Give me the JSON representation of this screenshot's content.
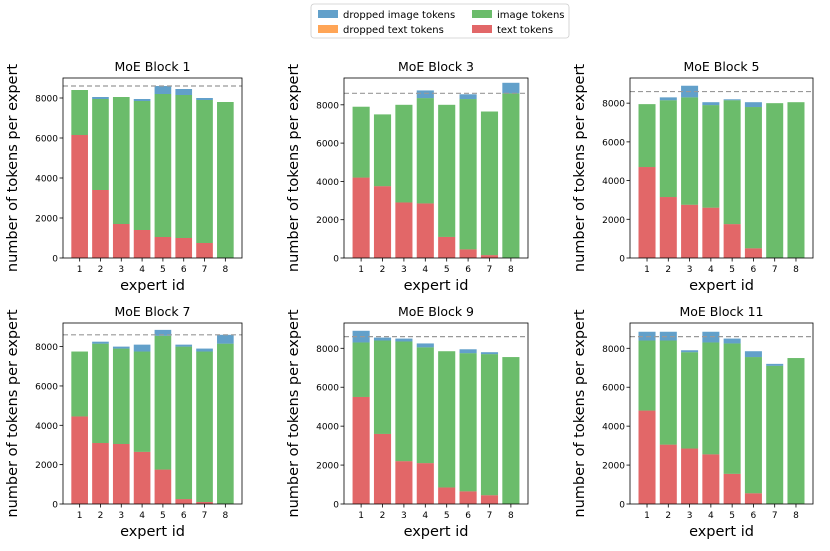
{
  "legend": {
    "entries": [
      {
        "label": "dropped image tokens",
        "color": "#1f77b4"
      },
      {
        "label": "dropped text tokens",
        "color": "#ff7f0e"
      },
      {
        "label": "image tokens",
        "color": "#2ca02c"
      },
      {
        "label": "text tokens",
        "color": "#d62728"
      }
    ]
  },
  "chart_data": [
    {
      "type": "bar",
      "title": "MoE Block 1",
      "xlabel": "expert id",
      "ylabel": "number of tokens per expert",
      "categories": [
        "1",
        "2",
        "3",
        "4",
        "5",
        "6",
        "7",
        "8"
      ],
      "ylim": [
        0,
        9000
      ],
      "yticks": [
        0,
        2000,
        4000,
        6000,
        8000
      ],
      "capacity": 8600,
      "series": [
        {
          "name": "text tokens",
          "values": [
            6150,
            3400,
            1700,
            1400,
            1050,
            1000,
            750,
            0
          ]
        },
        {
          "name": "image tokens",
          "values": [
            2250,
            4550,
            6350,
            6450,
            7150,
            7150,
            7150,
            7800
          ]
        },
        {
          "name": "dropped image tokens",
          "values": [
            0,
            100,
            0,
            100,
            400,
            300,
            100,
            0
          ]
        }
      ]
    },
    {
      "type": "bar",
      "title": "MoE Block 3",
      "xlabel": "expert id",
      "ylabel": "number of tokens per expert",
      "categories": [
        "1",
        "2",
        "3",
        "4",
        "5",
        "6",
        "7",
        "8"
      ],
      "ylim": [
        0,
        9400
      ],
      "yticks": [
        0,
        2000,
        4000,
        6000,
        8000
      ],
      "capacity": 8600,
      "series": [
        {
          "name": "text tokens",
          "values": [
            4200,
            3750,
            2900,
            2850,
            1100,
            450,
            150,
            0
          ]
        },
        {
          "name": "image tokens",
          "values": [
            3700,
            3750,
            5100,
            5500,
            6900,
            7850,
            7500,
            8600
          ]
        },
        {
          "name": "dropped image tokens",
          "values": [
            0,
            0,
            0,
            400,
            0,
            250,
            0,
            550
          ]
        }
      ]
    },
    {
      "type": "bar",
      "title": "MoE Block 5",
      "xlabel": "expert id",
      "ylabel": "number of tokens per expert",
      "categories": [
        "1",
        "2",
        "3",
        "4",
        "5",
        "6",
        "7",
        "8"
      ],
      "ylim": [
        0,
        9300
      ],
      "yticks": [
        0,
        2000,
        4000,
        6000,
        8000
      ],
      "capacity": 8600,
      "series": [
        {
          "name": "text tokens",
          "values": [
            4700,
            3150,
            2750,
            2600,
            1750,
            500,
            0,
            0
          ]
        },
        {
          "name": "image tokens",
          "values": [
            3250,
            5000,
            5550,
            5300,
            6400,
            7300,
            8000,
            8050
          ]
        },
        {
          "name": "dropped image tokens",
          "values": [
            0,
            150,
            600,
            150,
            50,
            250,
            0,
            0
          ]
        }
      ]
    },
    {
      "type": "bar",
      "title": "MoE Block 7",
      "xlabel": "expert id",
      "ylabel": "number of tokens per expert",
      "categories": [
        "1",
        "2",
        "3",
        "4",
        "5",
        "6",
        "7",
        "8"
      ],
      "ylim": [
        0,
        9200
      ],
      "yticks": [
        0,
        2000,
        4000,
        6000,
        8000
      ],
      "capacity": 8600,
      "series": [
        {
          "name": "text tokens",
          "values": [
            4450,
            3100,
            3050,
            2650,
            1750,
            250,
            100,
            0
          ]
        },
        {
          "name": "image tokens",
          "values": [
            3300,
            5050,
            4850,
            5100,
            6800,
            7750,
            7650,
            8150
          ]
        },
        {
          "name": "dropped image tokens",
          "values": [
            0,
            100,
            100,
            350,
            300,
            100,
            150,
            450
          ]
        }
      ]
    },
    {
      "type": "bar",
      "title": "MoE Block 9",
      "xlabel": "expert id",
      "ylabel": "number of tokens per expert",
      "categories": [
        "1",
        "2",
        "3",
        "4",
        "5",
        "6",
        "7",
        "8"
      ],
      "ylim": [
        0,
        9300
      ],
      "yticks": [
        0,
        2000,
        4000,
        6000,
        8000
      ],
      "capacity": 8600,
      "series": [
        {
          "name": "text tokens",
          "values": [
            5500,
            3600,
            2200,
            2100,
            850,
            650,
            450,
            0
          ]
        },
        {
          "name": "image tokens",
          "values": [
            2800,
            4800,
            6150,
            5950,
            7000,
            7100,
            7250,
            7550
          ]
        },
        {
          "name": "dropped image tokens",
          "values": [
            600,
            150,
            150,
            200,
            0,
            200,
            100,
            0
          ]
        }
      ]
    },
    {
      "type": "bar",
      "title": "MoE Block 11",
      "xlabel": "expert id",
      "ylabel": "number of tokens per expert",
      "categories": [
        "1",
        "2",
        "3",
        "4",
        "5",
        "6",
        "7",
        "8"
      ],
      "ylim": [
        0,
        9300
      ],
      "yticks": [
        0,
        2000,
        4000,
        6000,
        8000
      ],
      "capacity": 8600,
      "series": [
        {
          "name": "text tokens",
          "values": [
            4800,
            3050,
            2850,
            2550,
            1550,
            550,
            0,
            0
          ]
        },
        {
          "name": "image tokens",
          "values": [
            3600,
            5350,
            4950,
            5750,
            6700,
            7000,
            7100,
            7500
          ]
        },
        {
          "name": "dropped image tokens",
          "values": [
            450,
            450,
            100,
            550,
            250,
            300,
            100,
            0
          ]
        }
      ]
    }
  ]
}
